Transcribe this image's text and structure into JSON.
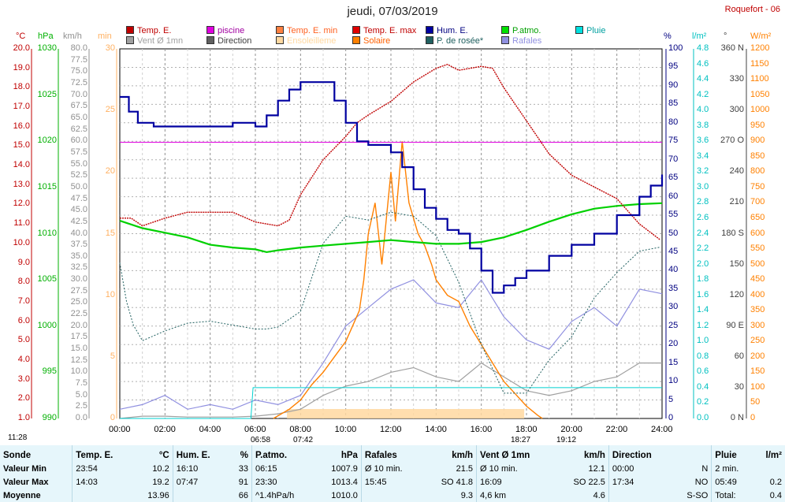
{
  "title": "jeudi, 07/03/2019",
  "station": "Roquefort - 06",
  "legend": [
    {
      "label": "Temp. E.",
      "color": "#c00000"
    },
    {
      "label": "piscine",
      "color": "#e000e0"
    },
    {
      "label": "Temp. E. min",
      "color": "#ff8040"
    },
    {
      "label": "Temp. E. max",
      "color": "#e00000"
    },
    {
      "label": "Hum. E.",
      "color": "#0000a0"
    },
    {
      "label": "P.atmo.",
      "color": "#00e000"
    },
    {
      "label": "Pluie",
      "color": "#00e0e0"
    },
    {
      "label": "Vent Ø 1mn",
      "color": "#a0a0a0"
    },
    {
      "label": "Direction",
      "color": "#606060"
    },
    {
      "label": "Ensoleilleme",
      "color": "#ffd8a0"
    },
    {
      "label": "Solaire",
      "color": "#ff8000"
    },
    {
      "label": "P. de rosée*",
      "color": "#206060"
    },
    {
      "label": "Rafales",
      "color": "#9090e0"
    }
  ],
  "units": {
    "temp": "°C",
    "press": "hPa",
    "wind": "km/h",
    "min": "min",
    "hum": "%",
    "rain": "l/m²",
    "dir": "°",
    "solar": "W/m²"
  },
  "colors": {
    "temp": "#c00000",
    "press": "#00b000",
    "wind": "#909090",
    "min": "#ffb060",
    "hum": "#000080",
    "rain": "#00c0c0",
    "dir": "#404040",
    "solar": "#ff8000"
  },
  "sun": {
    "rise_label": "11:28",
    "t1": "06:58",
    "t2": "07:42",
    "t3": "18:27",
    "t4": "19:12"
  },
  "chart_data": {
    "type": "line",
    "x_range": [
      "00:00",
      "24:00"
    ],
    "x_ticks": [
      "00:00",
      "02:00",
      "04:00",
      "06:00",
      "08:00",
      "10:00",
      "12:00",
      "14:00",
      "16:00",
      "18:00",
      "20:00",
      "22:00",
      "24:00"
    ],
    "axes": {
      "temp": {
        "range": [
          1.0,
          20.0
        ],
        "ticks": [
          "1.0",
          "2.0",
          "3.0",
          "4.0",
          "5.0",
          "6.0",
          "7.0",
          "8.0",
          "9.0",
          "10.0",
          "11.0",
          "12.0",
          "13.0",
          "14.0",
          "15.0",
          "16.0",
          "17.0",
          "18.0",
          "19.0",
          "20.0"
        ]
      },
      "press": {
        "range": [
          990,
          1030
        ],
        "ticks": [
          "990",
          "995",
          "1000",
          "1005",
          "1010",
          "1015",
          "1020",
          "1025",
          "1030"
        ]
      },
      "wind": {
        "range": [
          0.0,
          80.0
        ],
        "ticks": [
          "0.0",
          "2.5",
          "5.0",
          "7.5",
          "10.0",
          "12.5",
          "15.0",
          "17.5",
          "20.0",
          "22.5",
          "25.0",
          "27.5",
          "30.0",
          "32.5",
          "35.0",
          "37.5",
          "40.0",
          "42.5",
          "45.0",
          "47.5",
          "50.0",
          "52.5",
          "55.0",
          "57.5",
          "60.0",
          "62.5",
          "65.0",
          "67.5",
          "70.0",
          "72.5",
          "75.0",
          "77.5",
          "80.0"
        ]
      },
      "min": {
        "range": [
          0,
          30
        ],
        "ticks": [
          "0",
          "5",
          "10",
          "15",
          "20",
          "25",
          "30"
        ]
      },
      "hum": {
        "range": [
          0,
          100
        ],
        "ticks": [
          "0",
          "5",
          "10",
          "15",
          "20",
          "25",
          "30",
          "35",
          "40",
          "45",
          "50",
          "55",
          "60",
          "65",
          "70",
          "75",
          "80",
          "85",
          "90",
          "95",
          "100"
        ]
      },
      "rain": {
        "range": [
          0.0,
          4.8
        ],
        "ticks": [
          "0.0",
          "0.2",
          "0.4",
          "0.6",
          "0.8",
          "1.0",
          "1.2",
          "1.4",
          "1.6",
          "1.8",
          "2.0",
          "2.2",
          "2.4",
          "2.6",
          "2.8",
          "3.0",
          "3.2",
          "3.4",
          "3.6",
          "3.8",
          "4.0",
          "4.2",
          "4.4",
          "4.6",
          "4.8"
        ]
      },
      "dir": {
        "range": [
          0,
          360
        ],
        "ticks": [
          "0 N",
          "30",
          "60",
          "90 E",
          "120",
          "150",
          "180 S",
          "210",
          "240",
          "270 O",
          "300",
          "330",
          "360 N"
        ]
      },
      "solar": {
        "range": [
          0,
          1200
        ],
        "ticks": [
          "0",
          "50",
          "100",
          "150",
          "200",
          "250",
          "300",
          "350",
          "400",
          "450",
          "500",
          "550",
          "600",
          "650",
          "700",
          "750",
          "800",
          "850",
          "900",
          "950",
          "1000",
          "1050",
          "1100",
          "1150",
          "1200"
        ]
      }
    },
    "series": [
      {
        "name": "Temp. E.",
        "color": "#c00000",
        "x": [
          0,
          0.5,
          1,
          1.5,
          2,
          3,
          4,
          5,
          6,
          6.5,
          7,
          7.5,
          8,
          9,
          10,
          10.5,
          11,
          12,
          13,
          14,
          14.5,
          15,
          16,
          16.5,
          17,
          18,
          19,
          20,
          21,
          22,
          23,
          23.9
        ],
        "y": [
          11.3,
          11.3,
          10.9,
          11.1,
          11.3,
          11.6,
          11.6,
          11.6,
          11.1,
          11.0,
          10.9,
          11.2,
          12.5,
          14.3,
          15.5,
          16.2,
          16.6,
          17.3,
          18.3,
          19.0,
          19.2,
          18.9,
          19.1,
          19.0,
          18.0,
          16.3,
          14.6,
          13.5,
          12.9,
          12.3,
          11.0,
          10.2
        ]
      },
      {
        "name": "piscine",
        "color": "#e000e0",
        "x": [
          0,
          24
        ],
        "y": [
          15.2,
          15.2
        ]
      },
      {
        "name": "Hum. E.",
        "color": "#0000a0",
        "x": [
          0,
          0.4,
          0.8,
          1.5,
          2,
          3,
          4,
          5,
          6,
          6.2,
          6.5,
          7,
          7.5,
          8,
          9,
          9.5,
          10,
          10.5,
          11,
          11.5,
          12,
          12.5,
          13,
          13.5,
          14,
          14.5,
          15,
          15.5,
          16,
          16.5,
          17,
          17.5,
          18,
          19,
          20,
          21,
          22,
          23,
          23.5,
          24
        ],
        "y": [
          87,
          83,
          80,
          79,
          79,
          79,
          79,
          80,
          79,
          79,
          82,
          86,
          89,
          91,
          91,
          86,
          80,
          75,
          74,
          74,
          72,
          68,
          62,
          57,
          54,
          51,
          50,
          46,
          40,
          34,
          36,
          38,
          40,
          44,
          47,
          50,
          55,
          60,
          63,
          66
        ]
      },
      {
        "name": "P.atmo.",
        "color": "#00d000",
        "x": [
          0,
          1,
          2,
          3,
          4,
          5,
          6,
          6.5,
          7,
          8,
          9,
          10,
          11,
          12,
          13,
          14,
          15,
          16,
          17,
          18,
          19,
          20,
          21,
          22,
          23,
          24
        ],
        "y": [
          1011.4,
          1010.6,
          1010.1,
          1009.6,
          1008.8,
          1008.5,
          1008.3,
          1008.0,
          1008.2,
          1008.5,
          1008.7,
          1008.9,
          1009.1,
          1009.3,
          1009.1,
          1008.9,
          1008.9,
          1009.1,
          1009.6,
          1010.4,
          1011.3,
          1012.1,
          1012.7,
          1013.0,
          1013.2,
          1013.3
        ]
      },
      {
        "name": "Solaire",
        "color": "#ff8000",
        "x": [
          6.8,
          7.5,
          8,
          8.5,
          9,
          9.5,
          10,
          10.3,
          10.6,
          10.8,
          11,
          11.3,
          11.6,
          12,
          12.2,
          12.5,
          12.8,
          13,
          13.2,
          13.5,
          13.8,
          14,
          14.5,
          15,
          15.5,
          16,
          16.5,
          17,
          17.5,
          18,
          18.5,
          18.7
        ],
        "y": [
          0,
          30,
          60,
          110,
          150,
          200,
          250,
          300,
          350,
          450,
          600,
          700,
          500,
          800,
          640,
          900,
          700,
          650,
          600,
          560,
          500,
          450,
          400,
          380,
          300,
          240,
          180,
          120,
          80,
          40,
          10,
          0
        ]
      },
      {
        "name": "Rafales",
        "color": "#9090e0",
        "x": [
          0,
          1,
          2,
          3,
          4,
          5,
          6,
          7,
          8,
          9,
          10,
          11,
          12,
          13,
          14,
          15,
          16,
          17,
          18,
          19,
          20,
          21,
          22,
          23,
          24
        ],
        "y": [
          2,
          3,
          5,
          2,
          3,
          2,
          4,
          3,
          5,
          12,
          20,
          24,
          28,
          30,
          25,
          24,
          30,
          22,
          17,
          15,
          21,
          24,
          20,
          28,
          27
        ]
      },
      {
        "name": "Vent Ø 1mn",
        "color": "#a0a0a0",
        "x": [
          0,
          1,
          2,
          3,
          4,
          5,
          6,
          7,
          8,
          9,
          10,
          11,
          12,
          13,
          14,
          15,
          16,
          17,
          18,
          19,
          20,
          21,
          22,
          23,
          24
        ],
        "y": [
          0,
          0.5,
          0.5,
          0.3,
          0.3,
          0.3,
          0.5,
          1,
          2,
          5,
          7,
          8,
          10,
          11,
          9,
          8,
          12,
          9,
          6,
          5,
          6,
          8,
          9,
          12,
          12
        ]
      },
      {
        "name": "P. de rosée*",
        "color": "#206060",
        "x": [
          0,
          0.3,
          0.6,
          1,
          2,
          3,
          4,
          5,
          6,
          6.5,
          7,
          8,
          9,
          10,
          11,
          12,
          13,
          14,
          15,
          16,
          17,
          18,
          19,
          20,
          21,
          22,
          23,
          23.9
        ],
        "y": [
          9.0,
          7.0,
          5.8,
          5.0,
          5.5,
          5.9,
          6.0,
          5.8,
          5.6,
          5.6,
          5.7,
          6.5,
          10.0,
          11.4,
          11.2,
          11.6,
          11.4,
          10.4,
          8.0,
          4.8,
          2.3,
          2.3,
          4.0,
          5.2,
          7.2,
          8.5,
          9.6,
          9.8
        ]
      },
      {
        "name": "Pluie",
        "color": "#00d0d0",
        "x": [
          0,
          5.8,
          5.9,
          24
        ],
        "y": [
          0,
          0,
          0.4,
          0.4
        ]
      }
    ]
  },
  "summary": {
    "headers": [
      "Sonde",
      "Temp. E.",
      "°C",
      "Hum. E.",
      "%",
      "P.atmo.",
      "hPa",
      "Rafales",
      "km/h",
      "Vent Ø 1mn",
      "km/h",
      "Direction",
      "",
      "Pluie",
      "l/m²"
    ],
    "rows": [
      [
        "Valeur Min",
        "23:54",
        "10.2",
        "16:10",
        "33",
        "06:15",
        "1007.9",
        "Ø 10 min.",
        "21.5",
        "Ø 10 min.",
        "12.1",
        "00:00",
        "N",
        "2 min.",
        ""
      ],
      [
        "Valeur Max",
        "14:03",
        "19.2",
        "07:47",
        "91",
        "23:30",
        "1013.4",
        "15:45",
        "SO 41.8",
        "16:09",
        "SO 22.5",
        "17:34",
        "NO",
        "05:49",
        "0.2"
      ],
      [
        "Moyenne",
        "",
        "13.96",
        "",
        "66",
        "^1.4hPa/h",
        "1010.0",
        "",
        "9.3",
        "4,6 km",
        "4.6",
        "",
        "S-SO",
        "Total:",
        "0.4"
      ]
    ]
  }
}
